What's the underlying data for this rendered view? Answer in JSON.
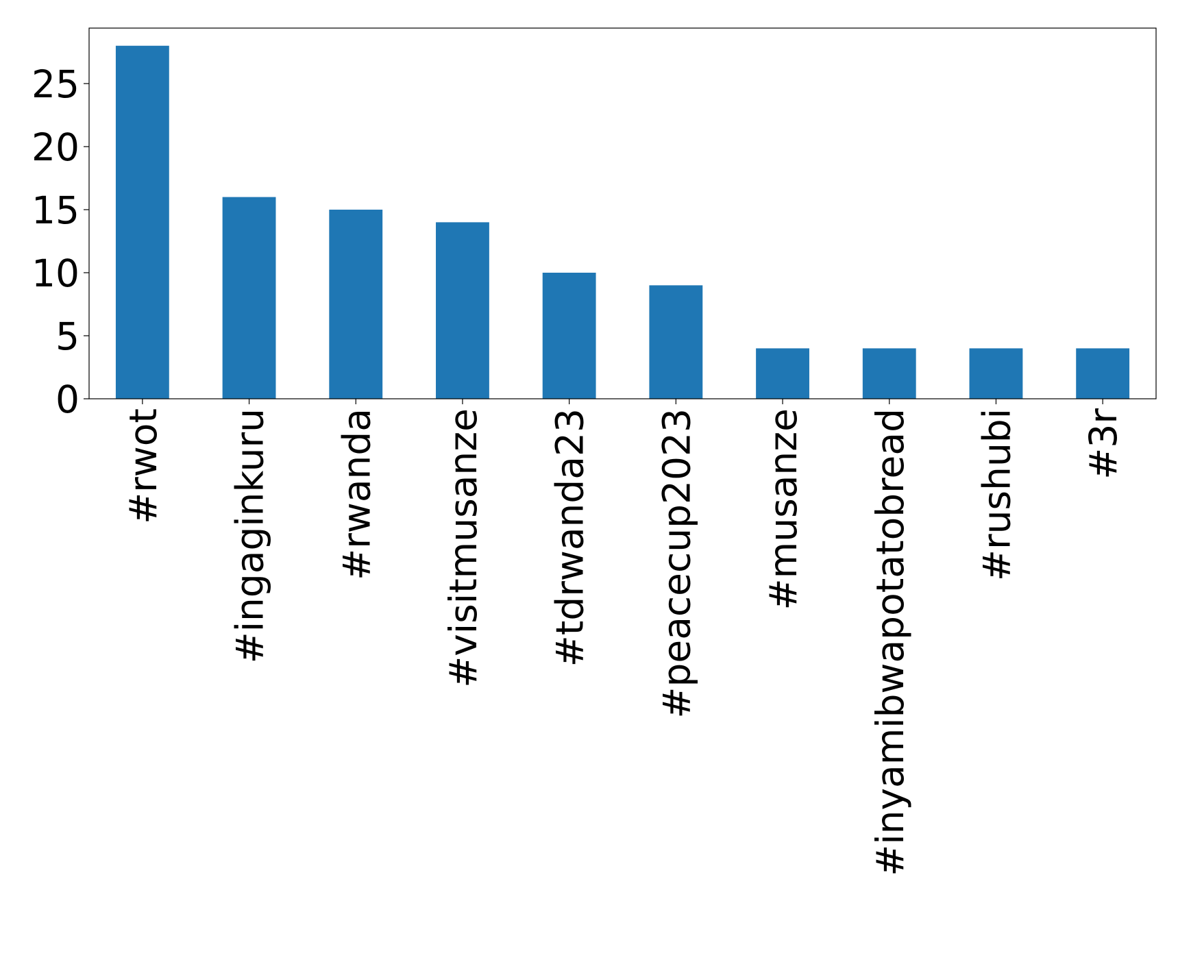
{
  "chart_data": {
    "type": "bar",
    "categories": [
      "#rwot",
      "#ingaginkuru",
      "#rwanda",
      "#visitmusanze",
      "#tdrwanda23",
      "#peacecup2023",
      "#musanze",
      "#inyamibwapotatobread",
      "#rushubi",
      "#3r"
    ],
    "values": [
      28,
      16,
      15,
      14,
      10,
      9,
      4,
      4,
      4,
      4
    ],
    "color": "#1f77b4",
    "ylim": [
      0,
      29.4
    ],
    "yticks": [
      0,
      5,
      10,
      15,
      20,
      25
    ],
    "grid": false
  }
}
